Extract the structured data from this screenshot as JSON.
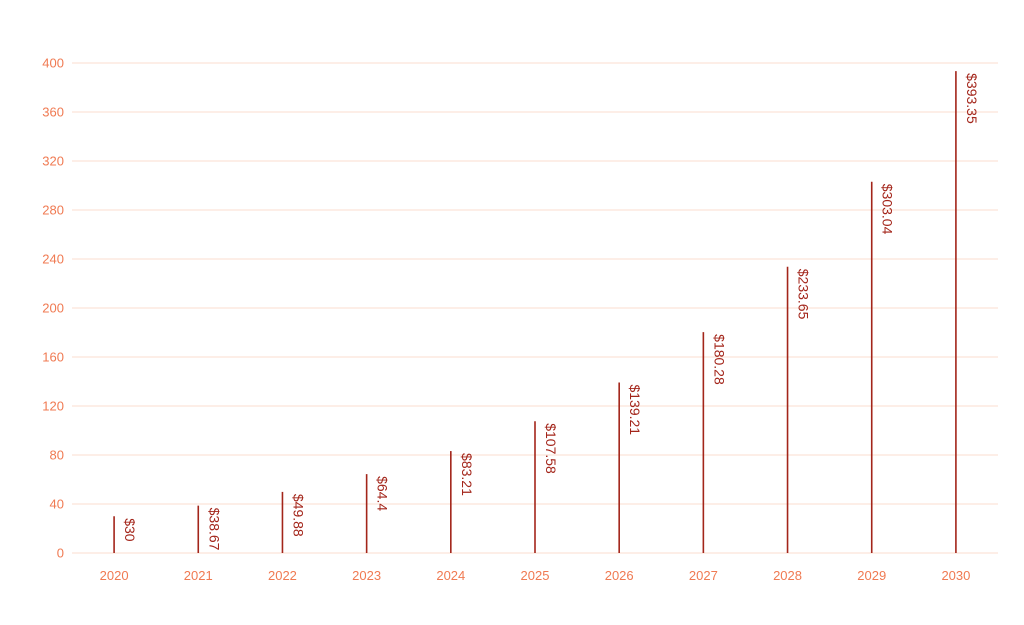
{
  "chart_data": {
    "type": "bar",
    "title": "",
    "xlabel": "",
    "ylabel": "",
    "categories": [
      "2020",
      "2021",
      "2022",
      "2023",
      "2024",
      "2025",
      "2026",
      "2027",
      "2028",
      "2029",
      "2030"
    ],
    "values": [
      30,
      38.67,
      49.88,
      64.4,
      83.21,
      107.58,
      139.21,
      180.28,
      233.65,
      303.04,
      393.35
    ],
    "data_labels": [
      "$30",
      "$38.67",
      "$49.88",
      "$64.4",
      "$83.21",
      "$107.58",
      "$139.21",
      "$180.28",
      "$233.65",
      "$303.04",
      "$393.35"
    ],
    "ylim": [
      0,
      400
    ],
    "yticks": [
      0,
      40,
      80,
      120,
      160,
      200,
      240,
      280,
      320,
      360,
      400
    ],
    "grid": true,
    "legend": "none",
    "colors": {
      "bar": "#a3251a",
      "data_label": "#a3251a",
      "tick_label": "#f07a52",
      "grid": "#fbdccf"
    }
  }
}
